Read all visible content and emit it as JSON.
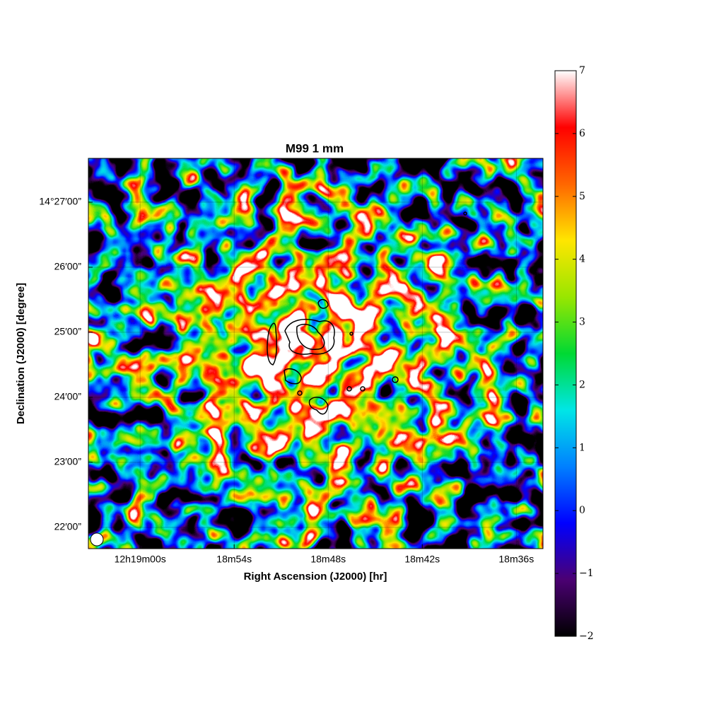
{
  "chart_data": {
    "type": "image",
    "title": "M99 1 mm",
    "xlabel": "Right Ascension (J2000) [hr]",
    "ylabel": "Declination (J2000) [degree]",
    "xlim": [
      44343.3,
      44314.3
    ],
    "xticks": [
      {
        "value": 44340,
        "label": "12h19m00s"
      },
      {
        "value": 44334,
        "label": "18m54s"
      },
      {
        "value": 44328,
        "label": "18m48s"
      },
      {
        "value": 44322,
        "label": "18m42s"
      },
      {
        "value": 44316,
        "label": "18m36s"
      }
    ],
    "ylim": [
      51700.4,
      52060.4
    ],
    "yticks": [
      {
        "value": 52020,
        "label": "14°27′00”"
      },
      {
        "value": 51960,
        "label": "26′00”"
      },
      {
        "value": 51900,
        "label": "25′00”"
      },
      {
        "value": 51840,
        "label": "24′00”"
      },
      {
        "value": 51780,
        "label": "23′00”"
      },
      {
        "value": 51720,
        "label": "22′00”"
      }
    ],
    "grid": true,
    "colorbar": {
      "lim": [
        -2,
        7
      ],
      "ticks": [
        {
          "value": -2,
          "label": "−2"
        },
        {
          "value": -1,
          "label": "−1"
        },
        0,
        1,
        2,
        3,
        4,
        5,
        6,
        7
      ],
      "colors": [
        "#000000",
        "#4b0073",
        "#0000ff",
        "#0080ff",
        "#00e6e6",
        "#00d933",
        "#99e600",
        "#ffe600",
        "#ff6600",
        "#ff0000",
        "#ffffff"
      ]
    }
  }
}
